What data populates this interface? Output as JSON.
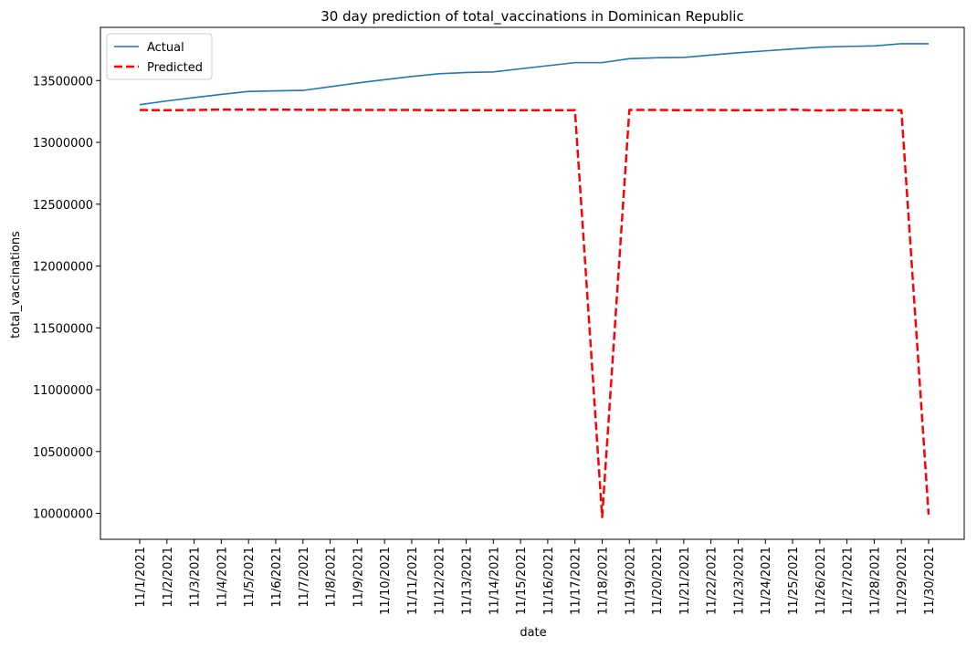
{
  "chart_data": {
    "type": "line",
    "title": "30 day prediction of total_vaccinations in Dominican Republic",
    "xlabel": "date",
    "ylabel": "total_vaccinations",
    "categories": [
      "11/1/2021",
      "11/2/2021",
      "11/3/2021",
      "11/4/2021",
      "11/5/2021",
      "11/6/2021",
      "11/7/2021",
      "11/8/2021",
      "11/9/2021",
      "11/10/2021",
      "11/11/2021",
      "11/12/2021",
      "11/13/2021",
      "11/14/2021",
      "11/15/2021",
      "11/16/2021",
      "11/17/2021",
      "11/18/2021",
      "11/19/2021",
      "11/20/2021",
      "11/21/2021",
      "11/22/2021",
      "11/23/2021",
      "11/24/2021",
      "11/25/2021",
      "11/26/2021",
      "11/27/2021",
      "11/28/2021",
      "11/29/2021",
      "11/30/2021"
    ],
    "yticks": [
      10000000,
      10500000,
      11000000,
      11500000,
      12000000,
      12500000,
      13000000,
      13500000
    ],
    "ylim": [
      9790000,
      13930000
    ],
    "grid": false,
    "legend_position": "top-left",
    "series": [
      {
        "name": "Actual",
        "color": "#1f77b4",
        "style": "solid",
        "values": [
          13305000,
          13335000,
          13362000,
          13388000,
          13412000,
          13417000,
          13420000,
          13450000,
          13480000,
          13507000,
          13533000,
          13555000,
          13565000,
          13570000,
          13595000,
          13620000,
          13645000,
          13645000,
          13677000,
          13684000,
          13687000,
          13706000,
          13725000,
          13740000,
          13755000,
          13770000,
          13776000,
          13780000,
          13798000,
          13798000
        ]
      },
      {
        "name": "Predicted",
        "color": "#ff0000",
        "style": "dashed",
        "values": [
          13262000,
          13260000,
          13262000,
          13265000,
          13265000,
          13265000,
          13263000,
          13263000,
          13262000,
          13262000,
          13262000,
          13260000,
          13260000,
          13260000,
          13260000,
          13260000,
          13260000,
          9970000,
          13262000,
          13262000,
          13260000,
          13262000,
          13260000,
          13260000,
          13265000,
          13258000,
          13262000,
          13260000,
          13260000,
          9990000
        ]
      }
    ]
  }
}
